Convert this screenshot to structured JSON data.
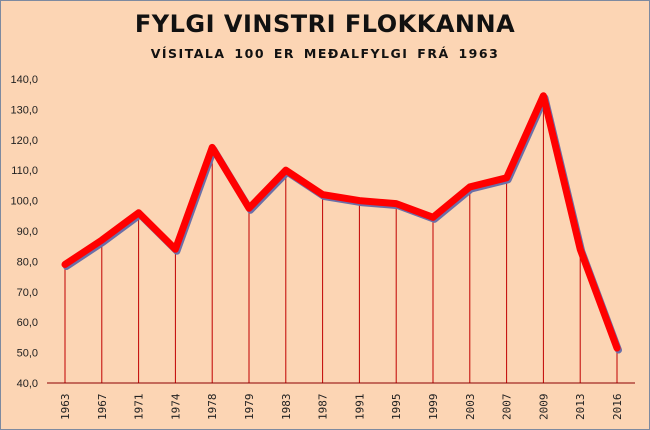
{
  "title": "FYLGI VINSTRI FLOKKANNA",
  "subtitle": "VÍSITALA 100 ER MEÐALFYLGI FRÁ 1963",
  "colors": {
    "background": "#fcd5b4",
    "line": "#ff0000",
    "shadow": "#6b6fa8",
    "droplines": "#c00000",
    "axis": "#8b0000",
    "frame": "#7d8aa0"
  },
  "chart_data": {
    "type": "line",
    "title": "FYLGI VINSTRI FLOKKANNA",
    "subtitle": "VÍSITALA 100 ER MEÐALFYLGI FRÁ 1963",
    "xlabel": "",
    "ylabel": "",
    "categories": [
      "1963",
      "1967",
      "1971",
      "1974",
      "1978",
      "1979",
      "1983",
      "1987",
      "1991",
      "1995",
      "1999",
      "2003",
      "2007",
      "2009",
      "2013",
      "2016"
    ],
    "series": [
      {
        "name": "Fylgi vinstri flokkanna",
        "values": [
          79,
          87,
          96,
          84,
          117.5,
          97.5,
          110,
          102,
          100,
          99,
          94.5,
          104.5,
          107.5,
          134.5,
          84,
          51.5
        ]
      }
    ],
    "ylim": [
      40,
      140
    ],
    "yticks": [
      "40,0",
      "50,0",
      "60,0",
      "70,0",
      "80,0",
      "90,0",
      "100,0",
      "110,0",
      "120,0",
      "130,0",
      "140,0"
    ],
    "ytick_values": [
      40,
      50,
      60,
      70,
      80,
      90,
      100,
      110,
      120,
      130,
      140
    ],
    "grid": false,
    "drop_lines": true,
    "legend": "none"
  }
}
